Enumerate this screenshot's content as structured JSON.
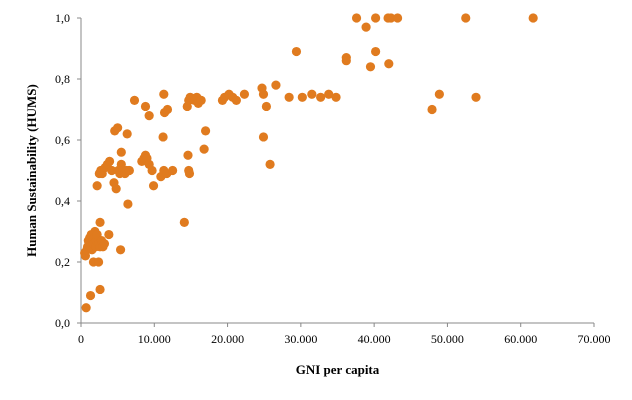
{
  "chart_data": {
    "type": "scatter",
    "title": "",
    "xlabel": "GNI per capita",
    "ylabel": "Human Sustainability (HUMS)",
    "xlim": [
      0,
      70000
    ],
    "ylim": [
      0,
      1
    ],
    "x_ticks": [
      0,
      10000,
      20000,
      30000,
      40000,
      50000,
      60000,
      70000
    ],
    "x_tick_labels": [
      "0",
      "10.000",
      "20.000",
      "30.000",
      "40.000",
      "50.000",
      "60.000",
      "70.000"
    ],
    "y_ticks": [
      0,
      0.2,
      0.4,
      0.6,
      0.8,
      1.0
    ],
    "y_tick_labels": [
      "0,0",
      "0,2",
      "0,4",
      "0,6",
      "0,8",
      "1,0"
    ],
    "grid": false,
    "legend": "none",
    "marker_color": "#E07B1F",
    "series": [
      {
        "points": [
          [
            500,
            0.23
          ],
          [
            600,
            0.22
          ],
          [
            800,
            0.24
          ],
          [
            900,
            0.25
          ],
          [
            1000,
            0.27
          ],
          [
            1100,
            0.26
          ],
          [
            1200,
            0.28
          ],
          [
            1300,
            0.25
          ],
          [
            1400,
            0.29
          ],
          [
            1500,
            0.24
          ],
          [
            1600,
            0.27
          ],
          [
            1700,
            0.26
          ],
          [
            1800,
            0.28
          ],
          [
            1900,
            0.3
          ],
          [
            2000,
            0.25
          ],
          [
            2100,
            0.27
          ],
          [
            2200,
            0.29
          ],
          [
            2400,
            0.26
          ],
          [
            2600,
            0.25
          ],
          [
            2800,
            0.27
          ],
          [
            3000,
            0.25
          ],
          [
            3200,
            0.26
          ],
          [
            2600,
            0.33
          ],
          [
            1700,
            0.2
          ],
          [
            2400,
            0.2
          ],
          [
            3800,
            0.29
          ],
          [
            5400,
            0.24
          ],
          [
            700,
            0.05
          ],
          [
            1300,
            0.09
          ],
          [
            2600,
            0.11
          ],
          [
            2200,
            0.45
          ],
          [
            2500,
            0.49
          ],
          [
            2700,
            0.5
          ],
          [
            2900,
            0.49
          ],
          [
            3300,
            0.51
          ],
          [
            3600,
            0.52
          ],
          [
            3900,
            0.53
          ],
          [
            4200,
            0.5
          ],
          [
            4500,
            0.46
          ],
          [
            4800,
            0.44
          ],
          [
            5100,
            0.5
          ],
          [
            5300,
            0.49
          ],
          [
            5500,
            0.52
          ],
          [
            5700,
            0.5
          ],
          [
            6000,
            0.49
          ],
          [
            6200,
            0.5
          ],
          [
            6600,
            0.5
          ],
          [
            6400,
            0.39
          ],
          [
            4600,
            0.63
          ],
          [
            5000,
            0.64
          ],
          [
            5500,
            0.56
          ],
          [
            6300,
            0.62
          ],
          [
            7300,
            0.73
          ],
          [
            8300,
            0.53
          ],
          [
            8600,
            0.54
          ],
          [
            8800,
            0.55
          ],
          [
            9000,
            0.54
          ],
          [
            9300,
            0.52
          ],
          [
            9700,
            0.5
          ],
          [
            9900,
            0.45
          ],
          [
            8800,
            0.71
          ],
          [
            9300,
            0.68
          ],
          [
            10900,
            0.48
          ],
          [
            11300,
            0.5
          ],
          [
            11700,
            0.49
          ],
          [
            11200,
            0.61
          ],
          [
            11400,
            0.69
          ],
          [
            11800,
            0.7
          ],
          [
            11300,
            0.75
          ],
          [
            12500,
            0.5
          ],
          [
            14100,
            0.33
          ],
          [
            14600,
            0.55
          ],
          [
            14700,
            0.5
          ],
          [
            14800,
            0.49
          ],
          [
            14500,
            0.71
          ],
          [
            14700,
            0.73
          ],
          [
            14900,
            0.74
          ],
          [
            15500,
            0.73
          ],
          [
            15800,
            0.74
          ],
          [
            16000,
            0.72
          ],
          [
            16400,
            0.73
          ],
          [
            16800,
            0.57
          ],
          [
            17000,
            0.63
          ],
          [
            19300,
            0.73
          ],
          [
            19600,
            0.74
          ],
          [
            20200,
            0.75
          ],
          [
            20700,
            0.74
          ],
          [
            21200,
            0.73
          ],
          [
            22300,
            0.75
          ],
          [
            24700,
            0.77
          ],
          [
            24900,
            0.75
          ],
          [
            24900,
            0.61
          ],
          [
            25300,
            0.71
          ],
          [
            25800,
            0.52
          ],
          [
            26600,
            0.78
          ],
          [
            28400,
            0.74
          ],
          [
            29400,
            0.89
          ],
          [
            30200,
            0.74
          ],
          [
            31500,
            0.75
          ],
          [
            32700,
            0.74
          ],
          [
            33800,
            0.75
          ],
          [
            34800,
            0.74
          ],
          [
            36200,
            0.87
          ],
          [
            36200,
            0.86
          ],
          [
            37600,
            1.0
          ],
          [
            38900,
            0.97
          ],
          [
            39500,
            0.84
          ],
          [
            40200,
            1.0
          ],
          [
            40200,
            0.89
          ],
          [
            41900,
            1.0
          ],
          [
            42000,
            0.85
          ],
          [
            42300,
            1.0
          ],
          [
            43200,
            1.0
          ],
          [
            47900,
            0.7
          ],
          [
            48900,
            0.75
          ],
          [
            52500,
            1.0
          ],
          [
            53900,
            0.74
          ],
          [
            61700,
            1.0
          ]
        ]
      }
    ]
  }
}
